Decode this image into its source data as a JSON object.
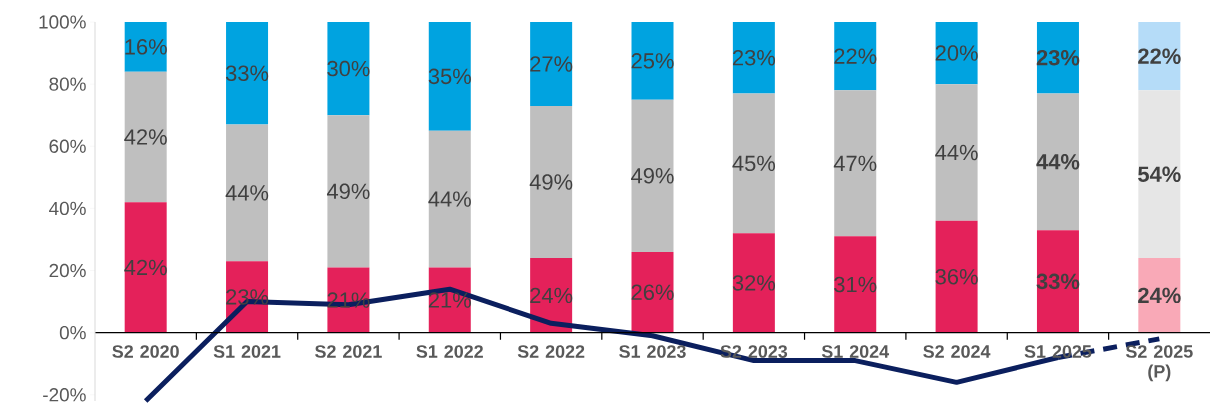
{
  "chart_data": {
    "type": "bar",
    "stacked": true,
    "categories": [
      "S2 2020",
      "S1 2021",
      "S2 2021",
      "S1 2022",
      "S2 2022",
      "S1 2023",
      "S2 2023",
      "S1 2024",
      "S2 2024",
      "S1 2025",
      "S2 2025 (P)"
    ],
    "series": [
      {
        "colors": [
          "#e4215a",
          "#e4215a",
          "#e4215a",
          "#e4215a",
          "#e4215a",
          "#e4215a",
          "#e4215a",
          "#e4215a",
          "#e4215a",
          "#e4215a",
          "#f9a9b7"
        ],
        "values": [
          42,
          23,
          21,
          21,
          24,
          26,
          32,
          31,
          36,
          33,
          24
        ],
        "value_labels": [
          "42%",
          "23%",
          "21%",
          "21%",
          "24%",
          "26%",
          "32%",
          "31%",
          "36%",
          "**33%**",
          "**24%**"
        ]
      },
      {
        "colors": [
          "#bfbfbf",
          "#bfbfbf",
          "#bfbfbf",
          "#bfbfbf",
          "#bfbfbf",
          "#bfbfbf",
          "#bfbfbf",
          "#bfbfbf",
          "#bfbfbf",
          "#bfbfbf",
          "#e6e6e6"
        ],
        "values": [
          42,
          44,
          49,
          44,
          49,
          49,
          45,
          47,
          44,
          44,
          54
        ],
        "value_labels": [
          "42%",
          "44%",
          "49%",
          "44%",
          "49%",
          "49%",
          "45%",
          "47%",
          "44%",
          "**44%**",
          "**54%**"
        ]
      },
      {
        "colors": [
          "#00a3e0",
          "#00a3e0",
          "#00a3e0",
          "#00a3e0",
          "#00a3e0",
          "#00a3e0",
          "#00a3e0",
          "#00a3e0",
          "#00a3e0",
          "#00a3e0",
          "#b5dcf8"
        ],
        "values": [
          16,
          33,
          30,
          35,
          27,
          25,
          23,
          22,
          20,
          23,
          22
        ],
        "value_labels": [
          "16%",
          "33%",
          "30%",
          "35%",
          "27%",
          "25%",
          "23%",
          "22%",
          "20%",
          "**23%**",
          "**22%**"
        ]
      },
      {
        "type": "line",
        "color": "#0b1f5e",
        "line_style": "solid",
        "values": [
          -22,
          10,
          9,
          14,
          3,
          -1,
          -9,
          -9,
          -16,
          -8,
          null
        ]
      },
      {
        "type": "line",
        "color": "#0b1f5e",
        "line_style": "dashed",
        "values": [
          null,
          null,
          null,
          null,
          null,
          null,
          null,
          null,
          null,
          -8,
          -2
        ]
      }
    ],
    "ylim": [
      -22,
      100
    ],
    "yticks": [
      {
        "value": -20,
        "label": "-20%"
      },
      {
        "value": 0,
        "label": "0%"
      },
      {
        "value": 20,
        "label": "20%"
      },
      {
        "value": 40,
        "label": "40%"
      },
      {
        "value": 60,
        "label": "60%"
      },
      {
        "value": 80,
        "label": "80%"
      },
      {
        "value": 100,
        "label": "100%"
      }
    ]
  }
}
